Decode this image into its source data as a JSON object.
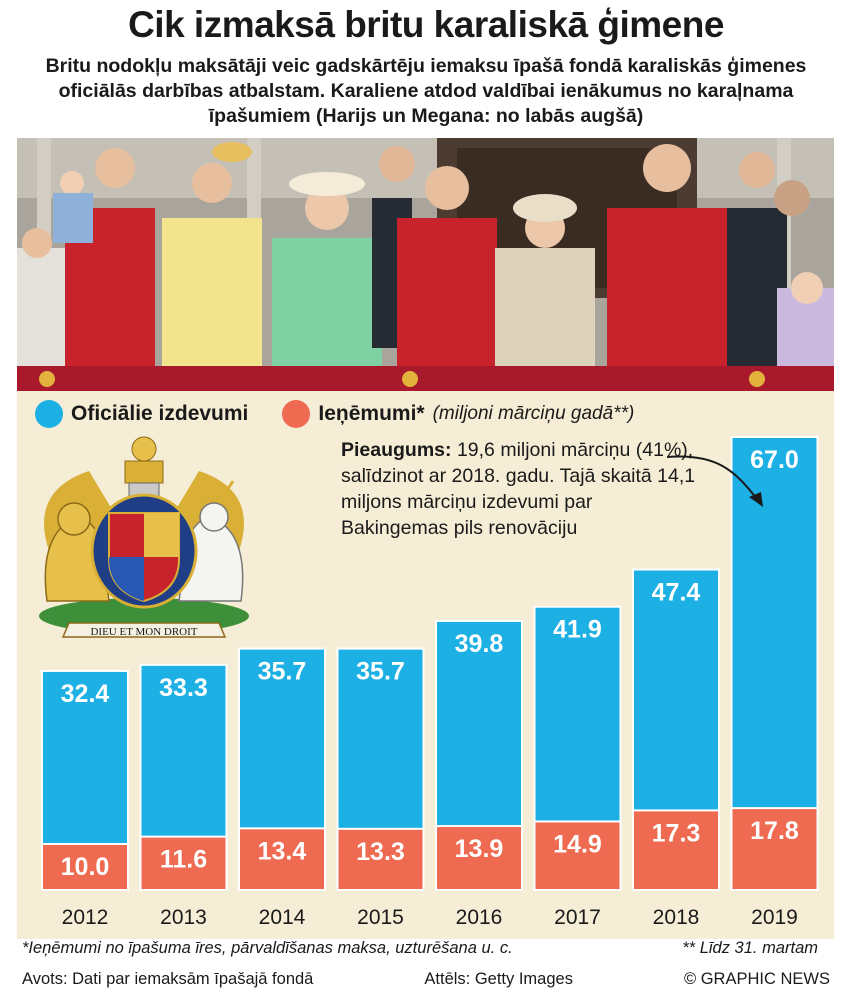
{
  "header": {
    "title": "Cik izmaksā britu karaliskā ģimene",
    "subtitle": "Britu nodokļu maksātāji veic gadskārtēju iemaksu īpašā fondā karaliskās ģimenes oficiālās darbības atbalstam. Karaliene atdod valdībai ienākumus no karaļnama īpašumiem (Harijs un Megana: no labās augšā)"
  },
  "legend": {
    "official_label": "Oficiālie izdevumi",
    "income_label": "Ieņēmumi*",
    "unit_note": "(miljoni mārciņu gadā**)"
  },
  "annotation": {
    "bold": "Pieaugums:",
    "text": " 19,6 miljoni mārciņu (41%), salīdzinot ar 2018. gadu. Tajā skaitā 14,1 miljons mārciņu izdevumi par Bakingemas pils renovāciju"
  },
  "chart_data": {
    "type": "bar",
    "categories": [
      "2012",
      "2013",
      "2014",
      "2015",
      "2016",
      "2017",
      "2018",
      "2019"
    ],
    "series": [
      {
        "name": "Oficiālie izdevumi",
        "values": [
          32.4,
          33.3,
          35.7,
          35.7,
          39.8,
          41.9,
          47.4,
          67.0
        ],
        "labels": [
          "32.4",
          "33.3",
          "35.7",
          "35.7",
          "39.8",
          "41.9",
          "47.4",
          "67.0"
        ],
        "color": "#1cb0e4"
      },
      {
        "name": "Ieņēmumi*",
        "values": [
          10.0,
          11.6,
          13.4,
          13.3,
          13.9,
          14.9,
          17.3,
          17.8
        ],
        "labels": [
          "10.0",
          "11.6",
          "13.4",
          "13.3",
          "13.9",
          "14.9",
          "17.3",
          "17.8"
        ],
        "color": "#ee6a50"
      }
    ],
    "ylim": [
      0,
      67.0
    ],
    "grid": false,
    "legend": "top-left"
  },
  "footnotes": {
    "left": "*Ieņēmumi no īpašuma īres, pārvaldīšanas maksa, uzturēšana u. c.",
    "right": "** Līdz 31. martam"
  },
  "credits": {
    "source": "Avots: Dati par iemaksām īpašajā fondā",
    "photo": "Attēls: Getty Images",
    "copyright": "© GRAPHIC NEWS"
  },
  "coat_of_arms": {
    "motto": "DIEU ET MON DROIT"
  },
  "colors": {
    "official": "#1cb0e4",
    "income": "#ee6a50",
    "panel": "#f6edd6"
  }
}
